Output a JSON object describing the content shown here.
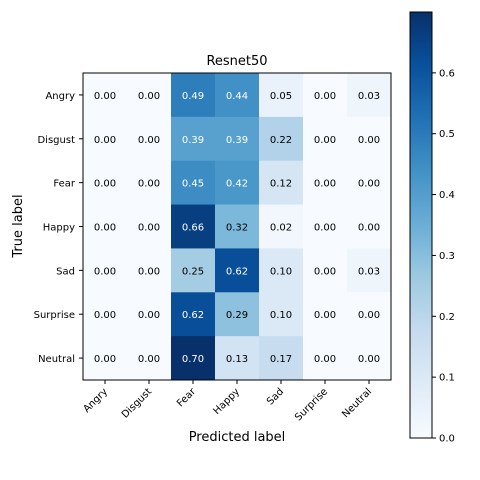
{
  "chart_data": {
    "type": "heatmap",
    "title": "Resnet50",
    "xlabel": "Predicted label",
    "ylabel": "True label",
    "x_categories": [
      "Angry",
      "Disgust",
      "Fear",
      "Happy",
      "Sad",
      "Surprise",
      "Neutral"
    ],
    "y_categories": [
      "Angry",
      "Disgust",
      "Fear",
      "Happy",
      "Sad",
      "Surprise",
      "Neutral"
    ],
    "values": [
      [
        0.0,
        0.0,
        0.49,
        0.44,
        0.05,
        0.0,
        0.03
      ],
      [
        0.0,
        0.0,
        0.39,
        0.39,
        0.22,
        0.0,
        0.0
      ],
      [
        0.0,
        0.0,
        0.45,
        0.42,
        0.12,
        0.0,
        0.0
      ],
      [
        0.0,
        0.0,
        0.66,
        0.32,
        0.02,
        0.0,
        0.0
      ],
      [
        0.0,
        0.0,
        0.25,
        0.62,
        0.1,
        0.0,
        0.03
      ],
      [
        0.0,
        0.0,
        0.62,
        0.29,
        0.1,
        0.0,
        0.0
      ],
      [
        0.0,
        0.0,
        0.7,
        0.13,
        0.17,
        0.0,
        0.0
      ]
    ],
    "value_format": "2 decimals",
    "colormap": "Blues",
    "colormap_stops": [
      "#f7fbff",
      "#deebf7",
      "#c6dbef",
      "#9ecae1",
      "#6baed6",
      "#4292c6",
      "#2171b5",
      "#08519c",
      "#08306b"
    ],
    "color_range": [
      0.0,
      0.7
    ],
    "colorbar_ticks": [
      "0.0",
      "0.1",
      "0.2",
      "0.3",
      "0.4",
      "0.5",
      "0.6"
    ],
    "text_color_dark": "#000000",
    "text_color_light": "#ffffff",
    "grid": false
  }
}
